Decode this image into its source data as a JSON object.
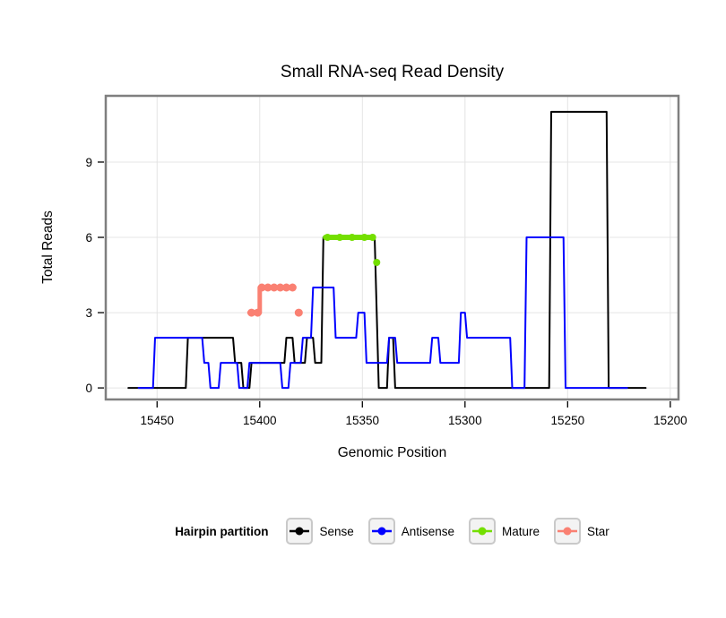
{
  "page": {
    "background": "#FFFFFF"
  },
  "chart_data": {
    "type": "line",
    "title": "Small RNA-seq Read Density",
    "xlabel": "Genomic Position",
    "ylabel": "Total Reads",
    "x_reversed": true,
    "xlim": [
      15475,
      15196
    ],
    "ylim": [
      -0.46,
      11.64
    ],
    "xticks": [
      15450,
      15400,
      15350,
      15300,
      15250,
      15200
    ],
    "yticks": [
      0,
      3,
      6,
      9
    ],
    "grid": true,
    "grid_color": "#E4E4E4",
    "panel_border_color": "#7F7F7F",
    "legend_title": "Hairpin partition",
    "series": [
      {
        "name": "Sense",
        "color": "#000000",
        "linewidth": 2,
        "points": [
          [
            15464,
            0
          ],
          [
            15436,
            0
          ],
          [
            15435,
            2
          ],
          [
            15413,
            2
          ],
          [
            15412,
            1
          ],
          [
            15409,
            1
          ],
          [
            15408,
            0
          ],
          [
            15405,
            0
          ],
          [
            15404,
            1
          ],
          [
            15388,
            1
          ],
          [
            15387,
            2
          ],
          [
            15384,
            2
          ],
          [
            15383,
            1
          ],
          [
            15378,
            1
          ],
          [
            15377,
            2
          ],
          [
            15374,
            2
          ],
          [
            15373,
            1
          ],
          [
            15370,
            1
          ],
          [
            15369,
            6
          ],
          [
            15344,
            6
          ],
          [
            15342,
            0
          ],
          [
            15338,
            0
          ],
          [
            15337,
            2
          ],
          [
            15335,
            2
          ],
          [
            15334,
            0
          ],
          [
            15259,
            0
          ],
          [
            15258,
            11
          ],
          [
            15231,
            11
          ],
          [
            15230,
            0
          ],
          [
            15212,
            0
          ]
        ]
      },
      {
        "name": "Antisense",
        "color": "#0000FF",
        "linewidth": 2,
        "points": [
          [
            15459,
            0
          ],
          [
            15452,
            0
          ],
          [
            15451,
            2
          ],
          [
            15428,
            2
          ],
          [
            15427,
            1
          ],
          [
            15425,
            1
          ],
          [
            15424,
            0
          ],
          [
            15420,
            0
          ],
          [
            15419,
            1
          ],
          [
            15411,
            1
          ],
          [
            15410,
            0
          ],
          [
            15406,
            0
          ],
          [
            15405,
            1
          ],
          [
            15390,
            1
          ],
          [
            15389,
            0
          ],
          [
            15386,
            0
          ],
          [
            15385,
            1
          ],
          [
            15380,
            1
          ],
          [
            15379,
            2
          ],
          [
            15375,
            2
          ],
          [
            15374,
            4
          ],
          [
            15364,
            4
          ],
          [
            15363,
            2
          ],
          [
            15353,
            2
          ],
          [
            15352,
            3
          ],
          [
            15349,
            3
          ],
          [
            15348,
            1
          ],
          [
            15338,
            1
          ],
          [
            15337,
            2
          ],
          [
            15334,
            2
          ],
          [
            15333,
            1
          ],
          [
            15317,
            1
          ],
          [
            15316,
            2
          ],
          [
            15313,
            2
          ],
          [
            15312,
            1
          ],
          [
            15303,
            1
          ],
          [
            15302,
            3
          ],
          [
            15300,
            3
          ],
          [
            15299,
            2
          ],
          [
            15278,
            2
          ],
          [
            15277,
            0
          ],
          [
            15271,
            0
          ],
          [
            15270,
            6
          ],
          [
            15252,
            6
          ],
          [
            15251,
            0
          ],
          [
            15221,
            0
          ]
        ]
      },
      {
        "name": "Mature",
        "color": "#74DF00",
        "linewidth": 6,
        "marker_r": 4,
        "points": [
          [
            15368,
            6
          ],
          [
            15345,
            6
          ]
        ],
        "markers": [
          [
            15367,
            6
          ],
          [
            15361,
            6
          ],
          [
            15355,
            6
          ],
          [
            15349,
            6
          ],
          [
            15345,
            6
          ],
          [
            15343,
            5
          ]
        ]
      },
      {
        "name": "Star",
        "color": "#FA8072",
        "linewidth": 5,
        "marker_r": 4.5,
        "points": [
          [
            15405,
            3
          ],
          [
            15400,
            3
          ],
          [
            15400,
            4
          ],
          [
            15384,
            4
          ]
        ],
        "markers": [
          [
            15404,
            3
          ],
          [
            15401,
            3
          ],
          [
            15399,
            4
          ],
          [
            15396,
            4
          ],
          [
            15393,
            4
          ],
          [
            15390,
            4
          ],
          [
            15387,
            4
          ],
          [
            15384,
            4
          ],
          [
            15381,
            3
          ]
        ]
      }
    ]
  }
}
